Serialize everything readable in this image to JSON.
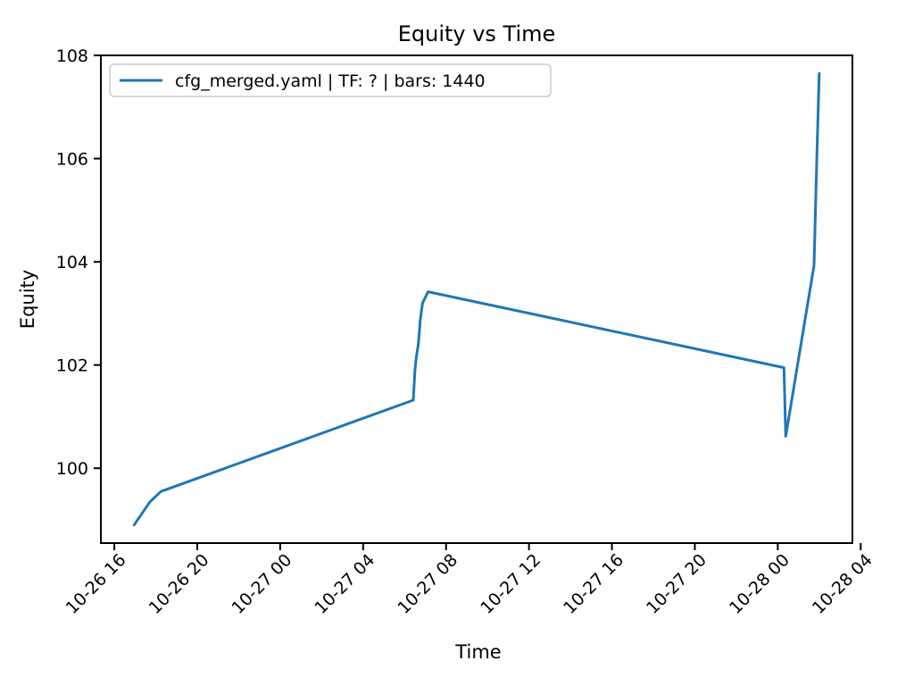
{
  "figure": {
    "background": "#ffffff"
  },
  "chart_data": {
    "type": "line",
    "title": "Equity vs Time",
    "xlabel": "Time",
    "ylabel": "Equity",
    "grid": false,
    "legend_position": "upper left",
    "line_color": "#1f77b4",
    "legend_edge_color": "#cccccc",
    "x_tick_labels": [
      "10-26 16",
      "10-26 20",
      "10-27 00",
      "10-27 04",
      "10-27 08",
      "10-27 12",
      "10-27 16",
      "10-27 20",
      "10-28 00",
      "10-28 04"
    ],
    "y_ticks": [
      100,
      102,
      104,
      106,
      108
    ],
    "ylim": [
      98.55,
      108.0
    ],
    "xlim_hours": [
      15.35,
      51.6
    ],
    "series": [
      {
        "name": "cfg_merged.yaml | TF: ? | bars: 1440",
        "points": [
          {
            "time": "10-26 16:57",
            "equity": 98.9
          },
          {
            "time": "10-26 17:43",
            "equity": 99.35
          },
          {
            "time": "10-26 18:15",
            "equity": 99.55
          },
          {
            "time": "10-27 06:25",
            "equity": 101.32
          },
          {
            "time": "10-27 06:30",
            "equity": 101.9
          },
          {
            "time": "10-27 06:34",
            "equity": 102.15
          },
          {
            "time": "10-27 06:40",
            "equity": 102.42
          },
          {
            "time": "10-27 06:45",
            "equity": 102.85
          },
          {
            "time": "10-27 06:52",
            "equity": 103.2
          },
          {
            "time": "10-27 07:08",
            "equity": 103.42
          },
          {
            "time": "10-28 00:18",
            "equity": 101.95
          },
          {
            "time": "10-28 00:23",
            "equity": 100.62
          },
          {
            "time": "10-28 01:45",
            "equity": 103.93
          },
          {
            "time": "10-28 01:53",
            "equity": 106.0
          },
          {
            "time": "10-28 02:00",
            "equity": 107.65
          }
        ]
      }
    ]
  }
}
